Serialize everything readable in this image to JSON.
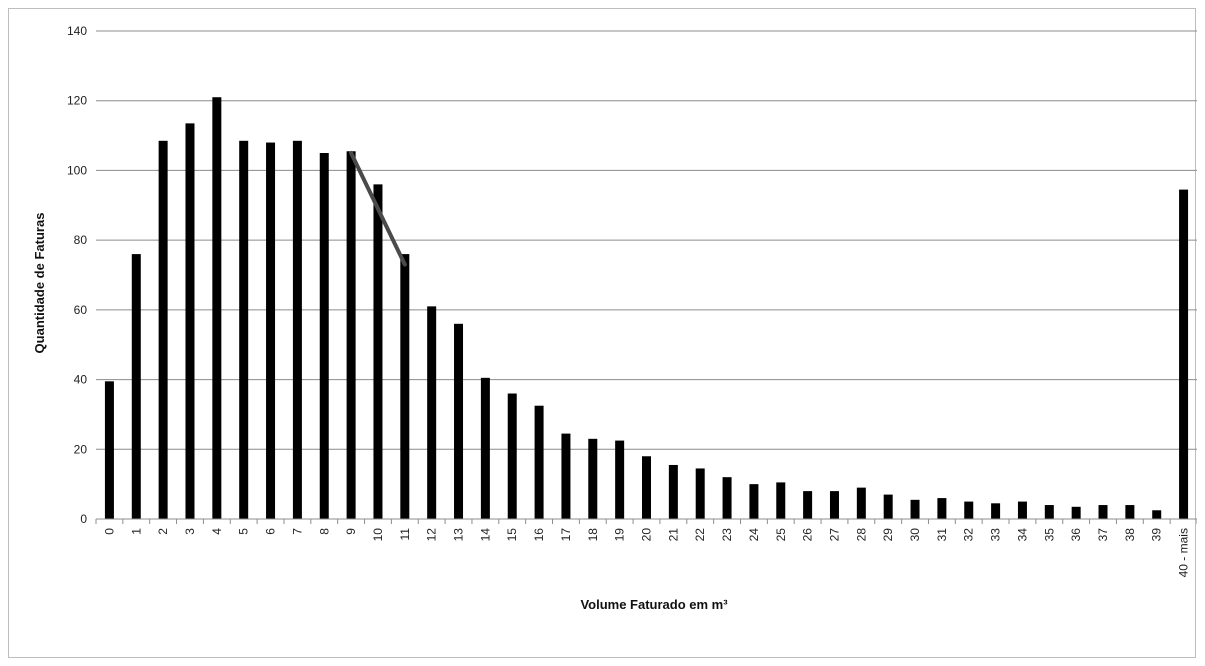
{
  "chart_data": {
    "type": "bar",
    "title": "",
    "xlabel": "Volume Faturado em m³",
    "ylabel": "Quantidade de Faturas",
    "ylim": [
      0,
      140
    ],
    "yticks": [
      0,
      20,
      40,
      60,
      80,
      100,
      120,
      140
    ],
    "grid": true,
    "legend": "none",
    "bar_color": "#000000",
    "trend_color": "#4a4a4a",
    "categories": [
      "0",
      "1",
      "2",
      "3",
      "4",
      "5",
      "6",
      "7",
      "8",
      "9",
      "10",
      "11",
      "12",
      "13",
      "14",
      "15",
      "16",
      "17",
      "18",
      "19",
      "20",
      "21",
      "22",
      "23",
      "24",
      "25",
      "26",
      "27",
      "28",
      "29",
      "30",
      "31",
      "32",
      "33",
      "34",
      "35",
      "36",
      "37",
      "38",
      "39",
      "40 - mais"
    ],
    "values": [
      39.5,
      76,
      108.5,
      113.5,
      121,
      108.5,
      108,
      108.5,
      105,
      105.5,
      96,
      76,
      61,
      56,
      40.5,
      36,
      32.5,
      24.5,
      23,
      22.5,
      18,
      15.5,
      14.5,
      12,
      10,
      10.5,
      8,
      8,
      9,
      7,
      5.5,
      6,
      5,
      4.5,
      5,
      4,
      3.5,
      4,
      4,
      2.5,
      94.5
    ],
    "trend_line": {
      "x": [
        "9",
        "11"
      ],
      "y": [
        105,
        73
      ]
    }
  }
}
